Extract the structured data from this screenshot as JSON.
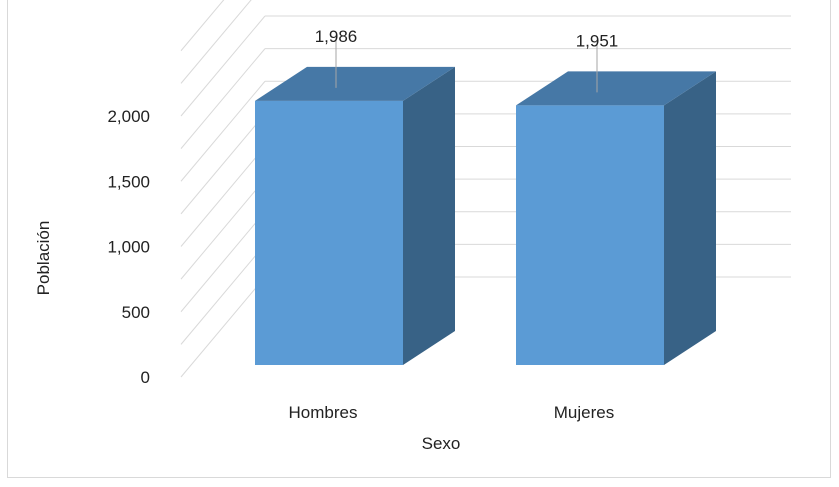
{
  "chart_data": {
    "type": "bar",
    "title": "",
    "categories": [
      "Hombres",
      "Mujeres"
    ],
    "values": [
      1986,
      1951
    ],
    "data_labels": [
      "1,986",
      "1,951"
    ],
    "xlabel": "Sexo",
    "ylabel": "Población",
    "ylim": [
      0,
      2000
    ],
    "y_ticks": [
      0,
      500,
      1000,
      1500,
      2000
    ],
    "y_tick_labels": [
      "0",
      "500",
      "1,000",
      "1,500",
      "2,000"
    ],
    "grid": true,
    "legend": "none",
    "colors": {
      "front": "#5b9bd5",
      "side": "#386286",
      "top": "#4678a6",
      "grid": "#d9d9d9"
    }
  }
}
